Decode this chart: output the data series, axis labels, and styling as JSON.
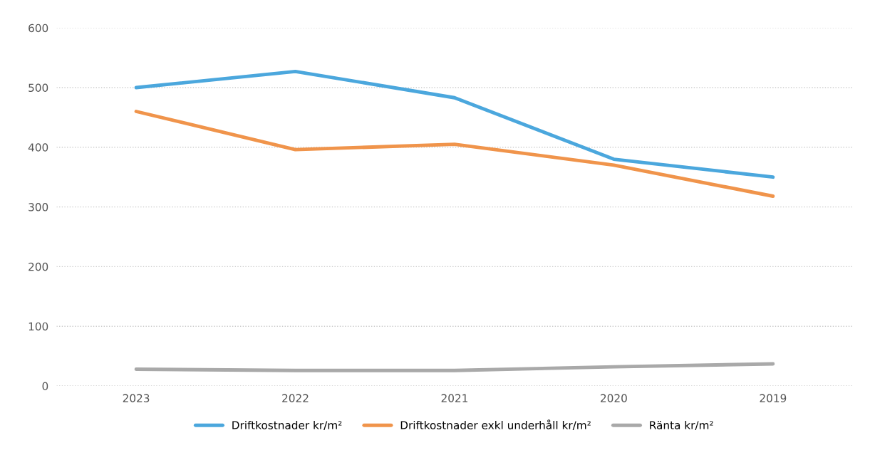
{
  "chart_data": {
    "type": "line",
    "categories": [
      "2023",
      "2022",
      "2021",
      "2020",
      "2019"
    ],
    "series": [
      {
        "name": "Driftkostnader kr/m²",
        "color": "#4ba7dd",
        "values": [
          500,
          527,
          483,
          380,
          350
        ]
      },
      {
        "name": "Driftkostnader exkl underhåll kr/m²",
        "color": "#f0944b",
        "values": [
          460,
          396,
          405,
          370,
          318
        ]
      },
      {
        "name": "Ränta kr/m²",
        "color": "#a9a9a9",
        "values": [
          28,
          26,
          26,
          32,
          37
        ]
      }
    ],
    "ylim": [
      0,
      600
    ],
    "yticks": [
      0,
      100,
      200,
      300,
      400,
      500,
      600
    ],
    "grid": "y",
    "legend": "bottom",
    "marker": "none",
    "line_style": "solid"
  }
}
